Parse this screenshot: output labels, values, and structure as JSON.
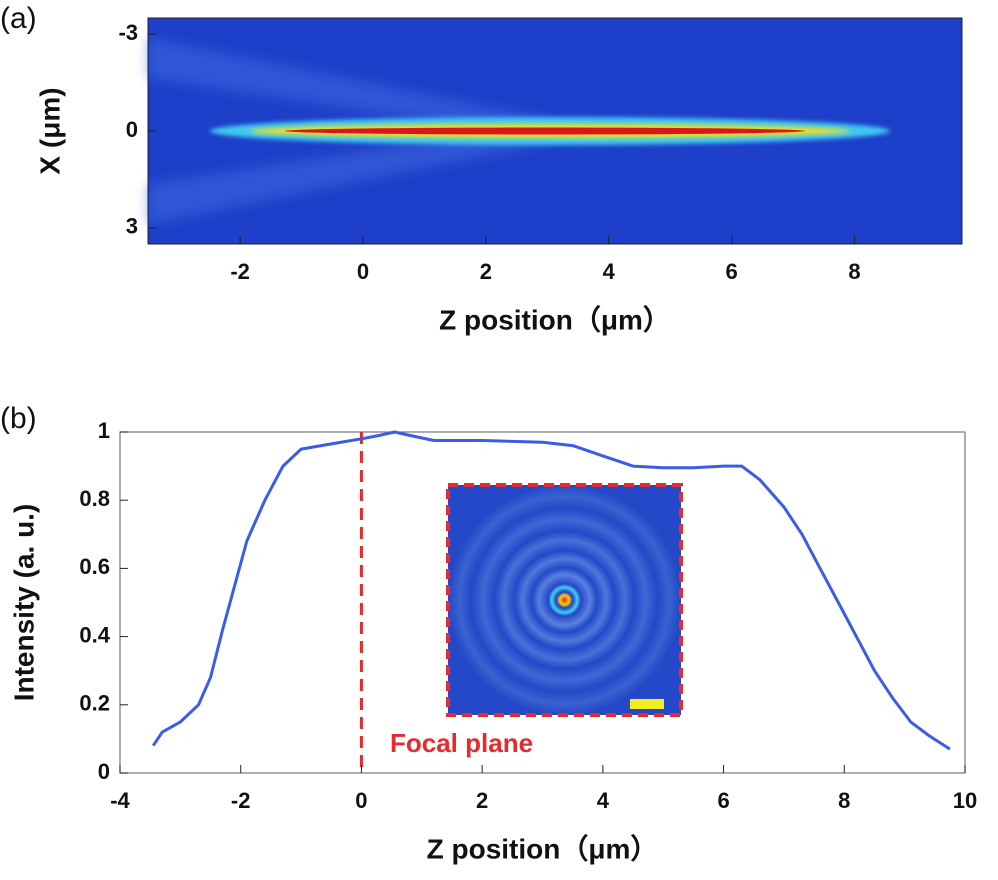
{
  "chart_data": [
    {
      "type": "heatmap",
      "panel_label": "(a)",
      "xlabel": "Z position（μm）",
      "ylabel": "X (μm)",
      "xlim": [
        -3.5,
        9.75
      ],
      "xticks": [
        -2,
        0,
        2,
        4,
        6,
        8
      ],
      "ylim": [
        -3.5,
        3.5
      ],
      "yticks": [
        -3,
        0,
        3
      ],
      "invert_y": true
    },
    {
      "type": "line",
      "panel_label": "(b)",
      "xlabel": "Z position（μm）",
      "ylabel": "Intensity (a. u.)",
      "x": [
        -3.45,
        -3.3,
        -3.0,
        -2.7,
        -2.5,
        -2.3,
        -2.1,
        -1.9,
        -1.6,
        -1.3,
        -1.0,
        -0.5,
        0,
        0.3,
        0.55,
        0.8,
        1.2,
        2,
        3,
        3.5,
        4,
        4.5,
        5,
        5.5,
        6,
        6.3,
        6.6,
        7,
        7.3,
        7.6,
        7.9,
        8.2,
        8.5,
        8.8,
        9.1,
        9.4,
        9.75
      ],
      "values": [
        0.08,
        0.12,
        0.15,
        0.2,
        0.28,
        0.42,
        0.55,
        0.68,
        0.8,
        0.9,
        0.95,
        0.965,
        0.98,
        0.99,
        1.0,
        0.99,
        0.975,
        0.975,
        0.97,
        0.96,
        0.93,
        0.9,
        0.895,
        0.895,
        0.9,
        0.9,
        0.86,
        0.78,
        0.7,
        0.6,
        0.5,
        0.4,
        0.3,
        0.22,
        0.15,
        0.11,
        0.07
      ],
      "color": "#3b5ce6",
      "xlim": [
        -4,
        10
      ],
      "xticks": [
        -4,
        -2,
        0,
        2,
        4,
        6,
        8,
        10
      ],
      "ylim": [
        0,
        1
      ],
      "yticks": [
        0,
        0.2,
        0.4,
        0.6,
        0.8,
        1
      ],
      "annotation": {
        "x": 0,
        "text": "Focal plane",
        "color": "#e52b2b"
      }
    }
  ]
}
